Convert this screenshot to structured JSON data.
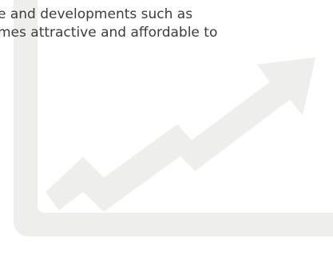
{
  "text": {
    "line1": "e and developments such as",
    "line2": "mes attractive and affordable to"
  },
  "graphic": {
    "icon": "growth-chart-arrow-icon",
    "color": "#eeeeed"
  }
}
